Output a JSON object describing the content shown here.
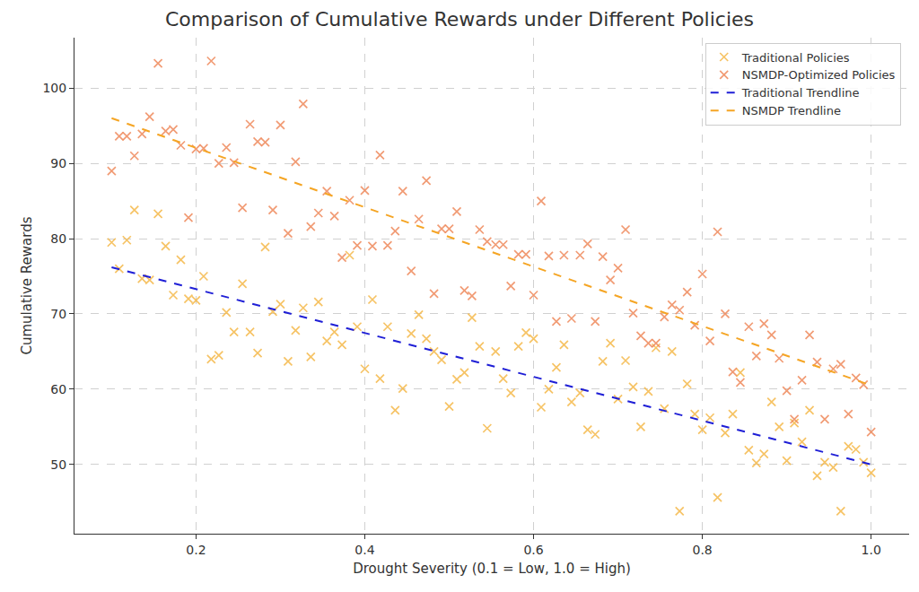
{
  "chart_data": {
    "type": "scatter",
    "title": "Comparison of Cumulative Rewards under Different Policies",
    "x_label": "Drought Severity (0.1 = Low, 1.0 = High)",
    "y_label": "Cumulative Rewards",
    "x": [
      0.1,
      0.109,
      0.118,
      0.127,
      0.136,
      0.145,
      0.155,
      0.164,
      0.173,
      0.182,
      0.191,
      0.2,
      0.209,
      0.218,
      0.227,
      0.236,
      0.245,
      0.255,
      0.264,
      0.273,
      0.282,
      0.291,
      0.3,
      0.309,
      0.318,
      0.327,
      0.336,
      0.345,
      0.355,
      0.364,
      0.373,
      0.382,
      0.391,
      0.4,
      0.409,
      0.418,
      0.427,
      0.436,
      0.445,
      0.455,
      0.464,
      0.473,
      0.482,
      0.491,
      0.5,
      0.509,
      0.518,
      0.527,
      0.536,
      0.545,
      0.555,
      0.564,
      0.573,
      0.582,
      0.591,
      0.6,
      0.609,
      0.618,
      0.627,
      0.636,
      0.645,
      0.655,
      0.664,
      0.673,
      0.682,
      0.691,
      0.7,
      0.709,
      0.718,
      0.727,
      0.736,
      0.745,
      0.755,
      0.764,
      0.773,
      0.782,
      0.791,
      0.8,
      0.809,
      0.818,
      0.827,
      0.836,
      0.845,
      0.855,
      0.864,
      0.873,
      0.882,
      0.891,
      0.9,
      0.909,
      0.918,
      0.927,
      0.936,
      0.945,
      0.955,
      0.964,
      0.973,
      0.982,
      0.991,
      1.0
    ],
    "series": [
      {
        "name": "Traditional Policies",
        "type": "scatter",
        "marker": "x",
        "color": "#f5b94a",
        "values": [
          79.5,
          76.0,
          79.8,
          83.8,
          74.7,
          74.5,
          83.3,
          79.0,
          72.5,
          77.2,
          72.0,
          71.8,
          75.0,
          64.0,
          64.5,
          70.2,
          67.6,
          74.0,
          67.6,
          64.8,
          78.9,
          70.3,
          71.3,
          63.7,
          67.8,
          70.8,
          64.3,
          71.6,
          66.4,
          67.6,
          65.9,
          77.8,
          68.3,
          62.7,
          71.9,
          61.4,
          68.3,
          57.2,
          60.1,
          67.4,
          69.9,
          66.7,
          65.0,
          63.9,
          57.7,
          61.3,
          62.2,
          69.5,
          65.7,
          54.8,
          65.0,
          61.4,
          59.5,
          65.7,
          67.5,
          66.7,
          57.6,
          60.0,
          62.9,
          65.9,
          58.3,
          59.5,
          54.6,
          54.0,
          63.7,
          66.1,
          58.7,
          63.8,
          60.3,
          55.0,
          59.7,
          65.5,
          57.4,
          65.0,
          43.8,
          60.7,
          56.7,
          54.6,
          56.2,
          45.6,
          54.2,
          56.7,
          62.2,
          51.9,
          50.2,
          51.4,
          58.3,
          55.0,
          50.5,
          55.5,
          53.0,
          57.2,
          48.5,
          50.3,
          49.6,
          43.8,
          52.4,
          52.0,
          50.3,
          48.9
        ]
      },
      {
        "name": "NSMDP-Optimized Policies",
        "type": "scatter",
        "marker": "x",
        "color": "#ee8a5c",
        "values": [
          89.0,
          93.6,
          93.6,
          91.0,
          93.9,
          96.2,
          103.3,
          94.3,
          94.5,
          92.4,
          82.8,
          91.9,
          92.0,
          103.6,
          90.0,
          92.1,
          90.1,
          84.1,
          95.2,
          92.9,
          92.8,
          83.8,
          95.1,
          80.7,
          90.2,
          97.9,
          81.6,
          83.4,
          86.3,
          83.0,
          77.5,
          85.1,
          79.1,
          86.4,
          79.0,
          91.1,
          79.1,
          81.0,
          86.3,
          75.7,
          82.6,
          87.7,
          72.7,
          81.3,
          81.3,
          83.6,
          73.1,
          72.4,
          81.2,
          79.6,
          79.2,
          79.2,
          73.7,
          77.9,
          77.9,
          72.5,
          85.0,
          77.7,
          69.0,
          77.8,
          69.4,
          77.8,
          79.3,
          69.0,
          77.6,
          74.5,
          76.1,
          81.2,
          70.1,
          67.1,
          66.1,
          66.1,
          69.6,
          71.2,
          70.5,
          72.9,
          68.5,
          75.3,
          66.4,
          80.9,
          70.0,
          62.3,
          60.9,
          68.3,
          64.4,
          68.7,
          67.2,
          64.1,
          59.8,
          56.0,
          61.2,
          67.2,
          63.6,
          56.0,
          62.7,
          63.3,
          56.7,
          61.5,
          60.6,
          54.3
        ]
      },
      {
        "name": "Traditional Trendline",
        "type": "line",
        "line_style": "dashed",
        "color": "#1f1fd6",
        "x": [
          0.1,
          1.0
        ],
        "values": [
          76.2,
          50.0
        ]
      },
      {
        "name": "NSMDP Trendline",
        "type": "line",
        "line_style": "dashed",
        "color": "#f5a524",
        "x": [
          0.1,
          1.0
        ],
        "values": [
          96.0,
          60.5
        ]
      }
    ],
    "xlim": [
      0.056,
      1.045
    ],
    "xticks": [
      0.2,
      0.4,
      0.6,
      0.8,
      {
        "value": 1,
        "label": "1.0"
      }
    ],
    "ylim": [
      40.8,
      106.7
    ],
    "yticks": [
      50,
      60,
      70,
      80,
      90,
      100
    ],
    "grid": true,
    "legend": "upper right"
  }
}
